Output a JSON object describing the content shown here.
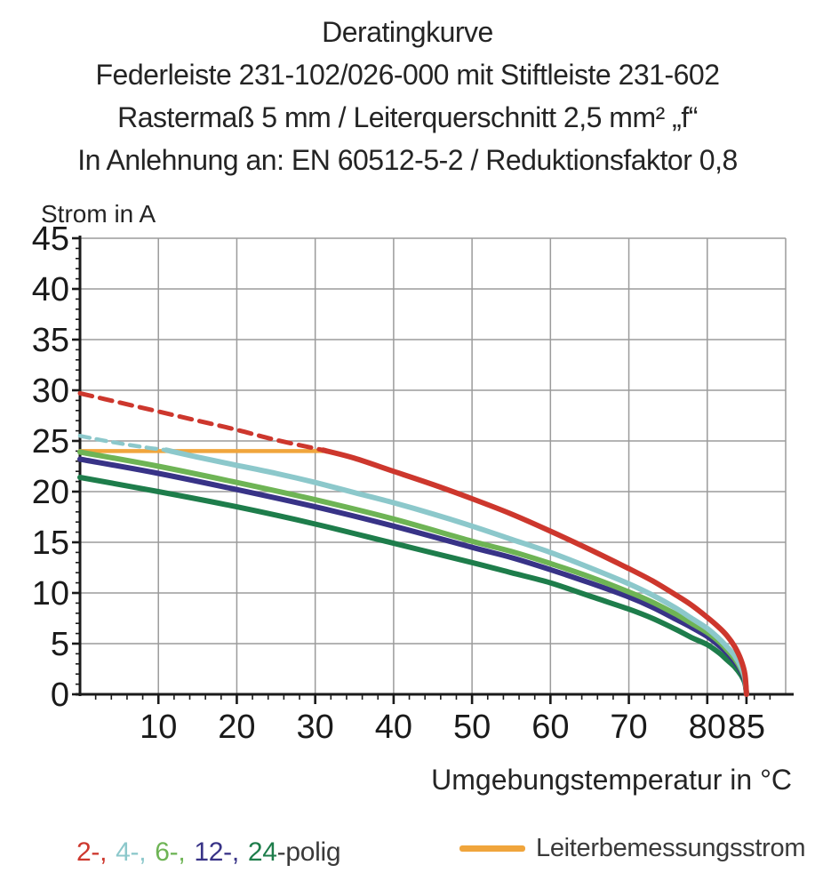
{
  "title": {
    "line1": "Deratingkurve",
    "line2": "Federleiste 231-102/026-000 mit Stiftleiste 231-602",
    "line3": "Rastermaß 5 mm / Leiterquerschnitt 2,5 mm² „f“",
    "line4": "In Anlehnung an: EN 60512-5-2 / Reduktionsfaktor 0,8"
  },
  "legend": {
    "pole_items": [
      {
        "id": "2",
        "text": "2-,",
        "color": "#cd372d",
        "gap": true
      },
      {
        "id": "4",
        "text": "4-,",
        "color": "#8cc8cb",
        "gap": true
      },
      {
        "id": "6",
        "text": "6-,",
        "color": "#6eb455",
        "gap": true
      },
      {
        "id": "12",
        "text": "12-,",
        "color": "#383387",
        "gap": true
      },
      {
        "id": "24",
        "text": "24",
        "color": "#1e7d4b",
        "gap": false
      },
      {
        "id": "polig",
        "text": "-polig",
        "color": "#3a3a3a",
        "gap": false
      }
    ],
    "rated_current_label": "Leiterbemessungsstrom",
    "rated_current_color": "#f0a53c"
  },
  "colors": {
    "grid": "#9b9b9b",
    "axis": "#1a1a1a",
    "tick_text": "#1a1a1a"
  },
  "chart_data": {
    "type": "line",
    "title": "Deratingkurve",
    "xlabel": "Umgebungstemperatur in °C",
    "ylabel": "Strom in A",
    "xlim": [
      0,
      90
    ],
    "ylim": [
      0,
      45
    ],
    "x_ticks": [
      10,
      20,
      30,
      40,
      50,
      60,
      70,
      80,
      85
    ],
    "x_minor_step": 2,
    "x_gridlines": [
      10,
      20,
      30,
      40,
      50,
      60,
      70,
      80,
      90
    ],
    "y_ticks": [
      0,
      5,
      10,
      15,
      20,
      25,
      30,
      35,
      40,
      45
    ],
    "y_minor_step": 1,
    "grid": true,
    "legend_position": "bottom",
    "series": [
      {
        "name": "Leiterbemessungsstrom",
        "color": "#f0a53c",
        "width": 4.5,
        "style": "solid",
        "points": [
          [
            0,
            24
          ],
          [
            31,
            24
          ]
        ]
      },
      {
        "name": "24-polig",
        "color": "#1e7d4b",
        "width": 6,
        "style": "solid",
        "points": [
          [
            0,
            21.4
          ],
          [
            10,
            20.0
          ],
          [
            20,
            18.5
          ],
          [
            30,
            16.8
          ],
          [
            40,
            14.9
          ],
          [
            50,
            13.0
          ],
          [
            55,
            12.0
          ],
          [
            60,
            11.0
          ],
          [
            65,
            9.7
          ],
          [
            70,
            8.4
          ],
          [
            73,
            7.5
          ],
          [
            76,
            6.4
          ],
          [
            78,
            5.6
          ],
          [
            80,
            4.9
          ],
          [
            81.5,
            4.1
          ],
          [
            82.5,
            3.4
          ],
          [
            83.5,
            2.7
          ],
          [
            84.3,
            1.9
          ],
          [
            84.8,
            1.1
          ],
          [
            85,
            0
          ]
        ]
      },
      {
        "name": "12-polig",
        "color": "#383387",
        "width": 6,
        "style": "solid",
        "points": [
          [
            0,
            23.2
          ],
          [
            10,
            21.8
          ],
          [
            20,
            20.2
          ],
          [
            30,
            18.5
          ],
          [
            40,
            16.6
          ],
          [
            50,
            14.5
          ],
          [
            55,
            13.5
          ],
          [
            60,
            12.3
          ],
          [
            65,
            11.0
          ],
          [
            70,
            9.6
          ],
          [
            73,
            8.6
          ],
          [
            76,
            7.4
          ],
          [
            78,
            6.6
          ],
          [
            80,
            5.7
          ],
          [
            81.5,
            4.8
          ],
          [
            82.5,
            4.1
          ],
          [
            83.5,
            3.2
          ],
          [
            84.3,
            2.3
          ],
          [
            84.8,
            1.3
          ],
          [
            85,
            0
          ]
        ]
      },
      {
        "name": "6-polig",
        "color": "#6eb455",
        "width": 6,
        "style": "solid",
        "points": [
          [
            0,
            23.9
          ],
          [
            10,
            22.5
          ],
          [
            20,
            20.9
          ],
          [
            30,
            19.2
          ],
          [
            40,
            17.3
          ],
          [
            50,
            15.1
          ],
          [
            55,
            14.1
          ],
          [
            60,
            12.9
          ],
          [
            65,
            11.6
          ],
          [
            70,
            10.1
          ],
          [
            73,
            9.1
          ],
          [
            76,
            7.9
          ],
          [
            78,
            7.0
          ],
          [
            80,
            6.1
          ],
          [
            81.5,
            5.2
          ],
          [
            82.5,
            4.4
          ],
          [
            83.5,
            3.5
          ],
          [
            84.3,
            2.5
          ],
          [
            84.8,
            1.5
          ],
          [
            85,
            0
          ]
        ]
      },
      {
        "name": "4-polig (oberhalb Leiterbemessungsstrom)",
        "color": "#8cc8cb",
        "width": 4.5,
        "style": "dashed",
        "points": [
          [
            0,
            25.5
          ],
          [
            4,
            24.9
          ],
          [
            8,
            24.4
          ],
          [
            11,
            24.1
          ]
        ]
      },
      {
        "name": "4-polig",
        "color": "#8cc8cb",
        "width": 6,
        "style": "solid",
        "points": [
          [
            11,
            24.1
          ],
          [
            15,
            23.4
          ],
          [
            20,
            22.6
          ],
          [
            25,
            21.8
          ],
          [
            30,
            20.9
          ],
          [
            35,
            19.9
          ],
          [
            40,
            18.9
          ],
          [
            45,
            17.8
          ],
          [
            50,
            16.6
          ],
          [
            55,
            15.3
          ],
          [
            60,
            14.0
          ],
          [
            65,
            12.5
          ],
          [
            70,
            10.9
          ],
          [
            73,
            9.8
          ],
          [
            76,
            8.5
          ],
          [
            78,
            7.5
          ],
          [
            80,
            6.5
          ],
          [
            81.5,
            5.5
          ],
          [
            82.5,
            4.7
          ],
          [
            83.5,
            3.8
          ],
          [
            84.3,
            2.7
          ],
          [
            84.8,
            1.6
          ],
          [
            85,
            0
          ]
        ]
      },
      {
        "name": "2-polig (oberhalb Leiterbemessungsstrom)",
        "color": "#cd372d",
        "width": 5,
        "style": "dashed",
        "points": [
          [
            0,
            29.7
          ],
          [
            5,
            28.8
          ],
          [
            10,
            27.9
          ],
          [
            15,
            27.0
          ],
          [
            20,
            26.1
          ],
          [
            25,
            25.1
          ],
          [
            31,
            24.1
          ]
        ]
      },
      {
        "name": "2-polig",
        "color": "#cd372d",
        "width": 6,
        "style": "solid",
        "points": [
          [
            31,
            24.1
          ],
          [
            35,
            23.3
          ],
          [
            40,
            22.0
          ],
          [
            45,
            20.7
          ],
          [
            50,
            19.3
          ],
          [
            55,
            17.8
          ],
          [
            60,
            16.1
          ],
          [
            65,
            14.3
          ],
          [
            70,
            12.4
          ],
          [
            73,
            11.2
          ],
          [
            76,
            9.8
          ],
          [
            78,
            8.8
          ],
          [
            80,
            7.6
          ],
          [
            81.5,
            6.6
          ],
          [
            82.5,
            5.8
          ],
          [
            83.5,
            4.7
          ],
          [
            84.3,
            3.4
          ],
          [
            84.8,
            2.0
          ],
          [
            85,
            0
          ]
        ]
      }
    ]
  }
}
